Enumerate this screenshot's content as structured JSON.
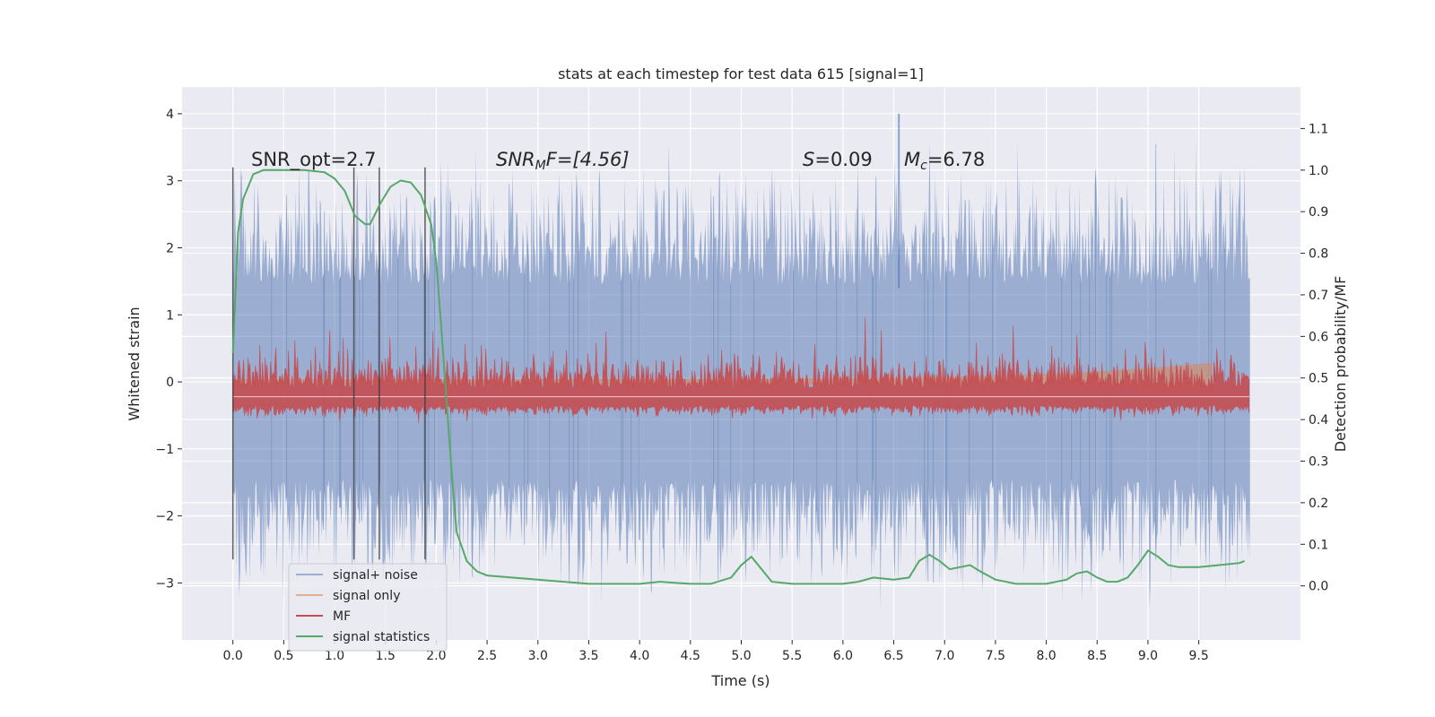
{
  "chart_data": {
    "type": "line",
    "title": "stats at each timestep for test data 615 [signal=1]",
    "xlabel": "Time (s)",
    "ylabel": "Whitened strain",
    "ylabel_right": "Detection probability/MF",
    "xlim": [
      -0.5,
      10.5
    ],
    "ylim": [
      -3.85,
      4.4
    ],
    "ylim_right": [
      -0.13,
      1.2
    ],
    "x_ticks": [
      "0.0",
      "0.5",
      "1.0",
      "1.5",
      "2.0",
      "2.5",
      "3.0",
      "3.5",
      "4.0",
      "4.5",
      "5.0",
      "5.5",
      "6.0",
      "6.5",
      "7.0",
      "7.5",
      "8.0",
      "8.5",
      "9.0",
      "9.5"
    ],
    "y_ticks": [
      "−3",
      "−2",
      "−1",
      "0",
      "1",
      "2",
      "3",
      "4"
    ],
    "y_tick_values": [
      -3,
      -2,
      -1,
      0,
      1,
      2,
      3,
      4
    ],
    "y_right_ticks": [
      "0.0",
      "0.1",
      "0.2",
      "0.3",
      "0.4",
      "0.5",
      "0.6",
      "0.7",
      "0.8",
      "0.9",
      "1.0",
      "1.1"
    ],
    "y_right_tick_values": [
      0,
      0.1,
      0.2,
      0.3,
      0.4,
      0.5,
      0.6,
      0.7,
      0.8,
      0.9,
      1.0,
      1.1
    ],
    "grid": true,
    "legend_placement": "lower-left",
    "annotations": {
      "snr_opt": "SNR_opt=2.7",
      "snr_mf_sym": "SNR",
      "snr_mf_sub": "M",
      "snr_mf_rest": "F=[4.56]",
      "s_sym": "S",
      "s_rest": "=0.09",
      "mc_sym": "M",
      "mc_sub": "c",
      "mc_rest": "=6.78"
    },
    "vertical_markers_x": [
      0.0,
      1.19,
      1.44,
      1.89
    ],
    "series": [
      {
        "name": "signal+ noise",
        "color": "#4c72b0",
        "kind": "noise",
        "value_range": [
          -3.5,
          4.0
        ],
        "x_range": [
          0.0,
          10.0
        ]
      },
      {
        "name": "signal only",
        "color": "#dd8452",
        "kind": "chirp",
        "x_range": [
          0.0,
          9.65
        ]
      },
      {
        "name": "MF",
        "color": "#c44e52",
        "kind": "band",
        "axis": "right",
        "base": 0.455,
        "x_range": [
          0.0,
          10.0
        ]
      },
      {
        "name": "signal statistics",
        "color": "#55a868",
        "axis": "right",
        "x": [
          0.0,
          0.05,
          0.1,
          0.2,
          0.3,
          0.5,
          0.7,
          0.9,
          1.0,
          1.1,
          1.2,
          1.3,
          1.35,
          1.45,
          1.55,
          1.65,
          1.75,
          1.85,
          1.95,
          2.0,
          2.05,
          2.1,
          2.15,
          2.2,
          2.3,
          2.4,
          2.5,
          3.0,
          3.5,
          4.0,
          4.2,
          4.5,
          4.7,
          4.9,
          5.0,
          5.1,
          5.2,
          5.3,
          5.5,
          6.0,
          6.15,
          6.3,
          6.5,
          6.65,
          6.75,
          6.85,
          6.95,
          7.05,
          7.15,
          7.25,
          7.35,
          7.5,
          7.7,
          8.0,
          8.2,
          8.3,
          8.4,
          8.5,
          8.6,
          8.7,
          8.8,
          8.9,
          9.0,
          9.1,
          9.2,
          9.3,
          9.5,
          9.7,
          9.9,
          9.95
        ],
        "values": [
          0.56,
          0.85,
          0.93,
          0.99,
          1.0,
          1.0,
          1.0,
          0.995,
          0.98,
          0.95,
          0.89,
          0.87,
          0.87,
          0.92,
          0.96,
          0.975,
          0.97,
          0.94,
          0.87,
          0.78,
          0.62,
          0.45,
          0.28,
          0.13,
          0.06,
          0.035,
          0.025,
          0.015,
          0.005,
          0.005,
          0.01,
          0.005,
          0.005,
          0.02,
          0.05,
          0.07,
          0.04,
          0.01,
          0.005,
          0.005,
          0.01,
          0.02,
          0.015,
          0.02,
          0.06,
          0.075,
          0.06,
          0.04,
          0.045,
          0.05,
          0.035,
          0.015,
          0.005,
          0.005,
          0.015,
          0.03,
          0.035,
          0.02,
          0.01,
          0.01,
          0.02,
          0.05,
          0.085,
          0.07,
          0.05,
          0.045,
          0.045,
          0.05,
          0.055,
          0.06
        ]
      }
    ]
  }
}
